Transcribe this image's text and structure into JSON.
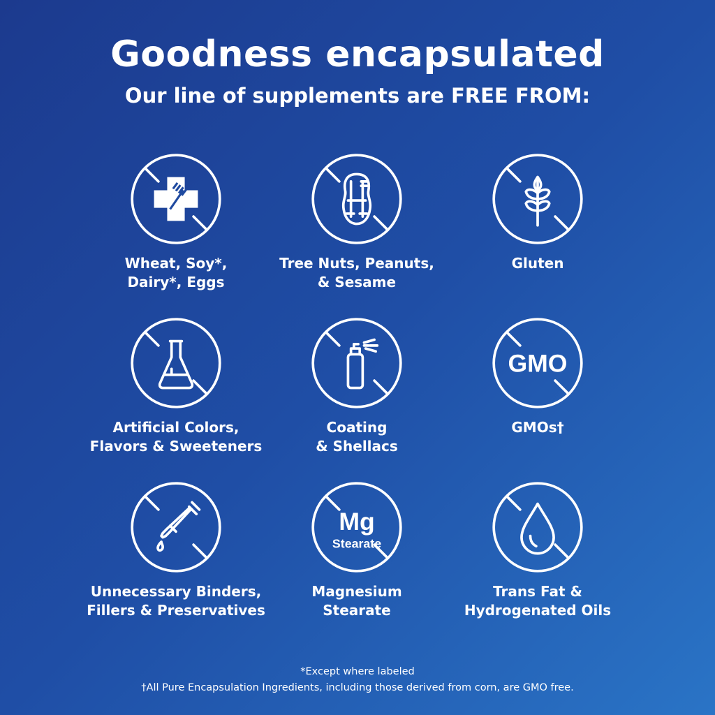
{
  "header": {
    "title": "Goodness encapsulated",
    "subtitle": "Our line of supplements are FREE FROM:"
  },
  "items": [
    {
      "icon": "wheat-soy-dairy-egg-icon",
      "label": "Wheat, Soy*,\nDairy*, Eggs"
    },
    {
      "icon": "peanut-icon",
      "label": "Tree Nuts, Peanuts,\n& Sesame"
    },
    {
      "icon": "grain-icon",
      "label": "Gluten"
    },
    {
      "icon": "flask-icon",
      "label": "Artificial Colors,\nFlavors & Sweeteners"
    },
    {
      "icon": "spray-bottle-icon",
      "label": "Coating\n& Shellacs"
    },
    {
      "icon": "gmo-icon",
      "label": "GMOs†",
      "icon_text": "GMO"
    },
    {
      "icon": "dropper-icon",
      "label": "Unnecessary Binders,\nFillers & Preservatives"
    },
    {
      "icon": "mg-stearate-icon",
      "label": "Magnesium\nStearate",
      "icon_text": "Mg",
      "icon_subtext": "Stearate"
    },
    {
      "icon": "oil-drop-icon",
      "label": "Trans Fat &\nHydrogenated Oils"
    }
  ],
  "footnotes": {
    "asterisk": "*Except where labeled",
    "dagger": "†All Pure Encapsulation Ingredients, including those derived from corn, are GMO free."
  },
  "colors": {
    "background_start": "#1c3a8e",
    "background_end": "#2a74c6",
    "foreground": "#ffffff"
  }
}
